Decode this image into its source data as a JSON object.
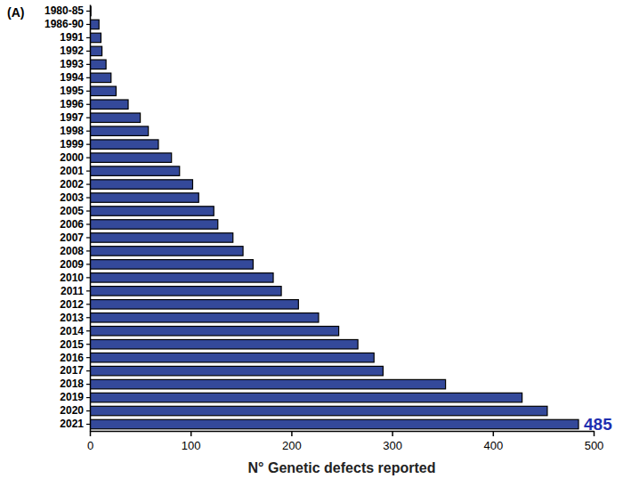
{
  "chart_data": {
    "type": "bar",
    "orientation": "horizontal",
    "panel_label": "(A)",
    "x_label": "N° Genetic defects reported",
    "categories": [
      "1980-85",
      "1986-90",
      "1991",
      "1992",
      "1993",
      "1994",
      "1995",
      "1996",
      "1997",
      "1998",
      "1999",
      "2000",
      "2001",
      "2002",
      "2003",
      "2005",
      "2006",
      "2007",
      "2008",
      "2009",
      "2010",
      "2011",
      "2012",
      "2013",
      "2014",
      "2015",
      "2016",
      "2017",
      "2018",
      "2019",
      "2020",
      "2021"
    ],
    "values": [
      1,
      9,
      11,
      12,
      16,
      21,
      26,
      38,
      50,
      58,
      68,
      81,
      89,
      102,
      108,
      123,
      127,
      142,
      152,
      162,
      182,
      190,
      207,
      227,
      247,
      266,
      282,
      291,
      353,
      429,
      454,
      485
    ],
    "color": "#34499a",
    "xlim": [
      0,
      500
    ],
    "xticks": [
      0,
      100,
      200,
      300,
      400,
      500
    ],
    "grid": false,
    "annotations": [
      {
        "text": "485",
        "color": "#1f2fb0"
      }
    ]
  }
}
